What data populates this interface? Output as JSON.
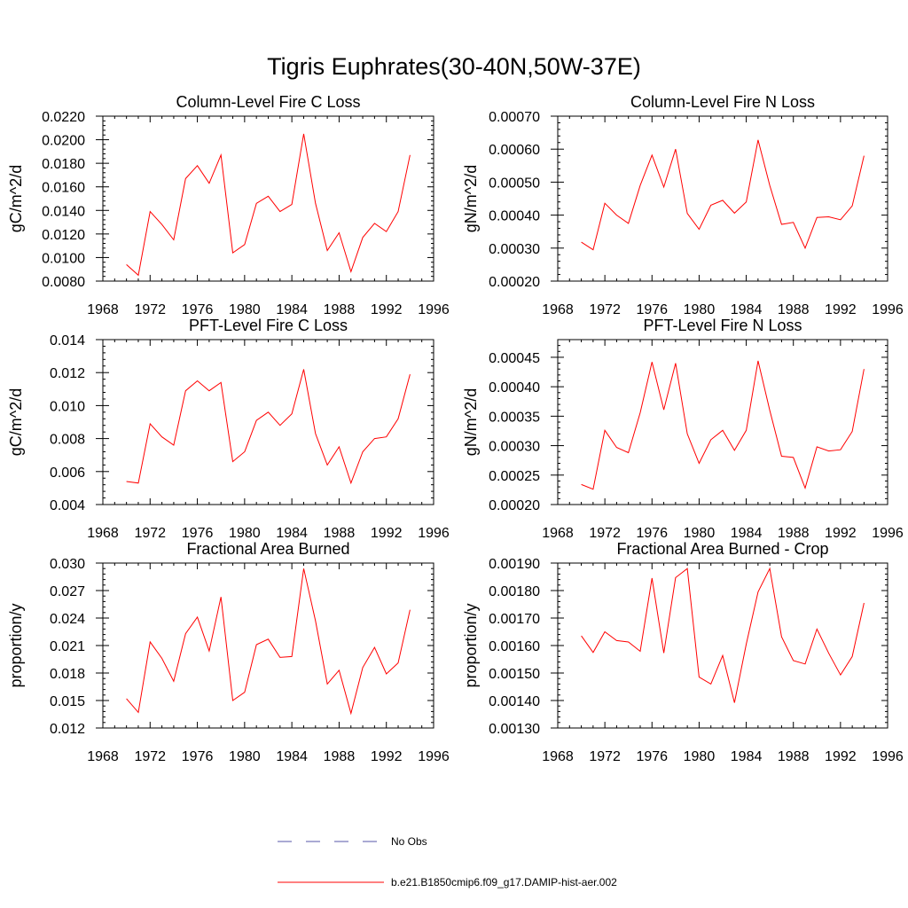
{
  "figure": {
    "title": "Tigris Euphrates(30-40N,50W-37E)"
  },
  "legend": {
    "items": [
      {
        "label": "No Obs",
        "style": "dashed",
        "color": "#5555aa"
      },
      {
        "label": "b.e21.B1850cmip6.f09_g17.DAMIP-hist-aer.002",
        "style": "solid",
        "color": "#ff0000"
      }
    ]
  },
  "chart_data": [
    {
      "type": "line",
      "title": "Column-Level Fire C Loss",
      "ylabel": "gC/m^2/d",
      "xlim": [
        1968,
        1996
      ],
      "ylim": [
        0.008,
        0.022
      ],
      "xticks": [
        "1968",
        "1972",
        "1976",
        "1980",
        "1984",
        "1988",
        "1992",
        "1996"
      ],
      "yticks": [
        "0.0080",
        "0.0100",
        "0.0120",
        "0.0140",
        "0.0160",
        "0.0180",
        "0.0200",
        "0.0220"
      ],
      "x": [
        1970,
        1971,
        1972,
        1973,
        1974,
        1975,
        1976,
        1977,
        1978,
        1979,
        1980,
        1981,
        1982,
        1983,
        1984,
        1985,
        1986,
        1987,
        1988,
        1989,
        1990,
        1991,
        1992,
        1993,
        1994
      ],
      "series": [
        {
          "color": "#ff0000",
          "values": [
            0.0094,
            0.0085,
            0.0139,
            0.0128,
            0.0115,
            0.0167,
            0.0178,
            0.0163,
            0.0187,
            0.0104,
            0.0111,
            0.0146,
            0.0152,
            0.0139,
            0.0145,
            0.0205,
            0.0146,
            0.0106,
            0.0121,
            0.0088,
            0.0117,
            0.0129,
            0.0122,
            0.0139,
            0.0187
          ]
        }
      ]
    },
    {
      "type": "line",
      "title": "Column-Level Fire N Loss",
      "ylabel": "gN/m^2/d",
      "xlim": [
        1968,
        1996
      ],
      "ylim": [
        0.0002,
        0.0007
      ],
      "xticks": [
        "1968",
        "1972",
        "1976",
        "1980",
        "1984",
        "1988",
        "1992",
        "1996"
      ],
      "yticks": [
        "0.00020",
        "0.00030",
        "0.00040",
        "0.00050",
        "0.00060",
        "0.00070"
      ],
      "x": [
        1970,
        1971,
        1972,
        1973,
        1974,
        1975,
        1976,
        1977,
        1978,
        1979,
        1980,
        1981,
        1982,
        1983,
        1984,
        1985,
        1986,
        1987,
        1988,
        1989,
        1990,
        1991,
        1992,
        1993,
        1994
      ],
      "series": [
        {
          "color": "#ff0000",
          "values": [
            0.000318,
            0.000295,
            0.000436,
            0.0004,
            0.000375,
            0.00049,
            0.000582,
            0.000485,
            0.0006,
            0.000405,
            0.000357,
            0.00043,
            0.000445,
            0.000406,
            0.00044,
            0.000628,
            0.00049,
            0.000372,
            0.000378,
            0.0003,
            0.000393,
            0.000395,
            0.000386,
            0.000428,
            0.00058
          ]
        }
      ]
    },
    {
      "type": "line",
      "title": "PFT-Level Fire C Loss",
      "ylabel": "gC/m^2/d",
      "xlim": [
        1968,
        1996
      ],
      "ylim": [
        0.004,
        0.014
      ],
      "xticks": [
        "1968",
        "1972",
        "1976",
        "1980",
        "1984",
        "1988",
        "1992",
        "1996"
      ],
      "yticks": [
        "0.004",
        "0.006",
        "0.008",
        "0.010",
        "0.012",
        "0.014"
      ],
      "x": [
        1970,
        1971,
        1972,
        1973,
        1974,
        1975,
        1976,
        1977,
        1978,
        1979,
        1980,
        1981,
        1982,
        1983,
        1984,
        1985,
        1986,
        1987,
        1988,
        1989,
        1990,
        1991,
        1992,
        1993,
        1994
      ],
      "series": [
        {
          "color": "#ff0000",
          "values": [
            0.0054,
            0.0053,
            0.0089,
            0.0081,
            0.0076,
            0.0109,
            0.0115,
            0.0109,
            0.0114,
            0.0066,
            0.0072,
            0.0091,
            0.0096,
            0.0088,
            0.0095,
            0.0122,
            0.0083,
            0.0064,
            0.0075,
            0.0053,
            0.0072,
            0.008,
            0.0081,
            0.0092,
            0.0119
          ]
        }
      ]
    },
    {
      "type": "line",
      "title": "PFT-Level Fire N Loss",
      "ylabel": "gN/m^2/d",
      "xlim": [
        1968,
        1996
      ],
      "ylim": [
        0.0002,
        0.00048
      ],
      "xticks": [
        "1968",
        "1972",
        "1976",
        "1980",
        "1984",
        "1988",
        "1992",
        "1996"
      ],
      "yticks": [
        "0.00020",
        "0.00025",
        "0.00030",
        "0.00035",
        "0.00040",
        "0.00045"
      ],
      "x": [
        1970,
        1971,
        1972,
        1973,
        1974,
        1975,
        1976,
        1977,
        1978,
        1979,
        1980,
        1981,
        1982,
        1983,
        1984,
        1985,
        1986,
        1987,
        1988,
        1989,
        1990,
        1991,
        1992,
        1993,
        1994
      ],
      "series": [
        {
          "color": "#ff0000",
          "values": [
            0.000234,
            0.000226,
            0.000326,
            0.000297,
            0.000288,
            0.000356,
            0.000442,
            0.000361,
            0.00044,
            0.00032,
            0.00027,
            0.00031,
            0.000326,
            0.000292,
            0.000326,
            0.000444,
            0.00036,
            0.000282,
            0.00028,
            0.000228,
            0.000298,
            0.000291,
            0.000293,
            0.000324,
            0.00043
          ]
        }
      ]
    },
    {
      "type": "line",
      "title": "Fractional Area Burned",
      "ylabel": "proportion/y",
      "xlim": [
        1968,
        1996
      ],
      "ylim": [
        0.012,
        0.03
      ],
      "xticks": [
        "1968",
        "1972",
        "1976",
        "1980",
        "1984",
        "1988",
        "1992",
        "1996"
      ],
      "yticks": [
        "0.012",
        "0.015",
        "0.018",
        "0.021",
        "0.024",
        "0.027",
        "0.030"
      ],
      "x": [
        1970,
        1971,
        1972,
        1973,
        1974,
        1975,
        1976,
        1977,
        1978,
        1979,
        1980,
        1981,
        1982,
        1983,
        1984,
        1985,
        1986,
        1987,
        1988,
        1989,
        1990,
        1991,
        1992,
        1993,
        1994
      ],
      "series": [
        {
          "color": "#ff0000",
          "values": [
            0.0152,
            0.0137,
            0.0214,
            0.0196,
            0.0171,
            0.0223,
            0.0241,
            0.0204,
            0.0263,
            0.015,
            0.0159,
            0.0211,
            0.0217,
            0.0197,
            0.0198,
            0.0294,
            0.0237,
            0.0168,
            0.0183,
            0.0136,
            0.0186,
            0.0208,
            0.0179,
            0.0191,
            0.0249
          ]
        }
      ]
    },
    {
      "type": "line",
      "title": "Fractional Area Burned - Crop",
      "ylabel": "proportion/y",
      "xlim": [
        1968,
        1996
      ],
      "ylim": [
        0.0013,
        0.0019
      ],
      "xticks": [
        "1968",
        "1972",
        "1976",
        "1980",
        "1984",
        "1988",
        "1992",
        "1996"
      ],
      "yticks": [
        "0.00130",
        "0.00140",
        "0.00150",
        "0.00160",
        "0.00170",
        "0.00180",
        "0.00190"
      ],
      "x": [
        1970,
        1971,
        1972,
        1973,
        1974,
        1975,
        1976,
        1977,
        1978,
        1979,
        1980,
        1981,
        1982,
        1983,
        1984,
        1985,
        1986,
        1987,
        1988,
        1989,
        1990,
        1991,
        1992,
        1993,
        1994
      ],
      "series": [
        {
          "color": "#ff0000",
          "values": [
            0.001635,
            0.001575,
            0.00165,
            0.001618,
            0.001613,
            0.001579,
            0.001845,
            0.001573,
            0.001847,
            0.00188,
            0.001485,
            0.00146,
            0.001564,
            0.001392,
            0.001605,
            0.001795,
            0.00188,
            0.001632,
            0.001545,
            0.001533,
            0.00166,
            0.001572,
            0.001493,
            0.00156,
            0.001755
          ]
        }
      ]
    }
  ]
}
